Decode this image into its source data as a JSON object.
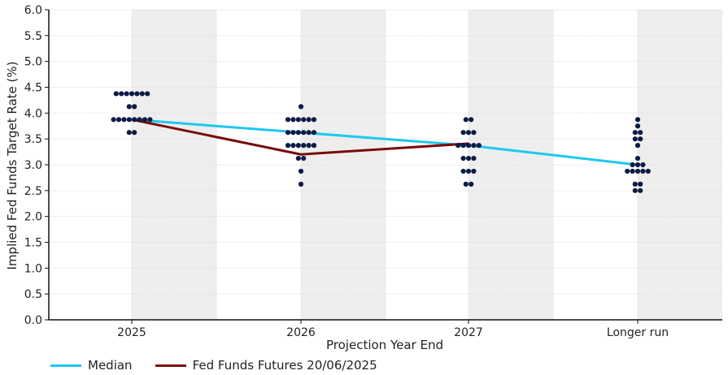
{
  "chart_data": {
    "type": "scatter",
    "xlabel": "Projection Year End",
    "ylabel": "Implied Fed Funds Target Rate (%)",
    "categories": [
      "2025",
      "2026",
      "2027",
      "Longer run"
    ],
    "ylim": [
      0,
      6
    ],
    "yticks": [
      "0.0",
      "0.5",
      "1.0",
      "1.5",
      "2.0",
      "2.5",
      "3.0",
      "3.5",
      "4.0",
      "4.5",
      "5.0",
      "5.5",
      "6.0"
    ],
    "grid": true,
    "legend_position": "bottom-left",
    "dots": [
      {
        "category": "2025",
        "rates": [
          {
            "rate": 4.375,
            "count": 7
          },
          {
            "rate": 4.125,
            "count": 2
          },
          {
            "rate": 3.875,
            "count": 8
          },
          {
            "rate": 3.625,
            "count": 2
          }
        ]
      },
      {
        "category": "2026",
        "rates": [
          {
            "rate": 4.125,
            "count": 1
          },
          {
            "rate": 3.875,
            "count": 6
          },
          {
            "rate": 3.625,
            "count": 6
          },
          {
            "rate": 3.375,
            "count": 6
          },
          {
            "rate": 3.125,
            "count": 2
          },
          {
            "rate": 2.875,
            "count": 1
          },
          {
            "rate": 2.625,
            "count": 1
          }
        ]
      },
      {
        "category": "2027",
        "rates": [
          {
            "rate": 3.875,
            "count": 2
          },
          {
            "rate": 3.625,
            "count": 3
          },
          {
            "rate": 3.375,
            "count": 5
          },
          {
            "rate": 3.125,
            "count": 3
          },
          {
            "rate": 2.875,
            "count": 3
          },
          {
            "rate": 2.625,
            "count": 2
          }
        ]
      },
      {
        "category": "Longer run",
        "rates": [
          {
            "rate": 3.875,
            "count": 1
          },
          {
            "rate": 3.75,
            "count": 1
          },
          {
            "rate": 3.625,
            "count": 2
          },
          {
            "rate": 3.5,
            "count": 2
          },
          {
            "rate": 3.375,
            "count": 1
          },
          {
            "rate": 3.125,
            "count": 1
          },
          {
            "rate": 3.0,
            "count": 3
          },
          {
            "rate": 2.875,
            "count": 5
          },
          {
            "rate": 2.625,
            "count": 2
          },
          {
            "rate": 2.5,
            "count": 2
          }
        ]
      }
    ],
    "series": [
      {
        "name": "Median",
        "color": "#1ec8ee",
        "values": [
          3.875,
          3.625,
          3.375,
          3.0
        ]
      },
      {
        "name": "Fed Funds Futures 20/06/2025",
        "color": "#7a0a0a",
        "values": [
          3.875,
          3.2,
          3.41,
          null
        ]
      }
    ],
    "dot_color": "#0d1b45",
    "band_color": "#eeeeee"
  }
}
